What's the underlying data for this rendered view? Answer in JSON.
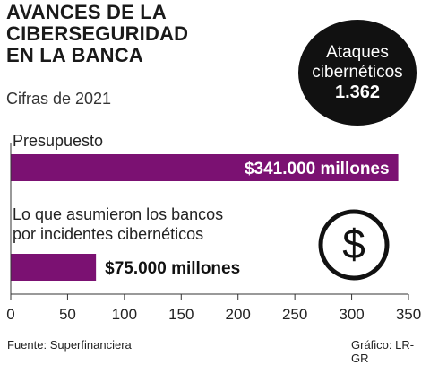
{
  "title": {
    "line1": "AVANCES DE LA",
    "line2": "CIBERSEGURIDAD",
    "line3": "EN LA BANCA"
  },
  "subtitle": "Cifras de 2021",
  "badge": {
    "line1": "Ataques",
    "line2": "cibernéticos",
    "value": "1.362"
  },
  "colors": {
    "bar": "#7b1172",
    "badge_bg": "#111111",
    "text": "#1a1a1a"
  },
  "icon": "dollar-circle-icon",
  "chart_data": {
    "type": "bar",
    "orientation": "horizontal",
    "categories": [
      "Presupuesto",
      "Lo que asumieron los bancos por incidentes cibernéticos"
    ],
    "category_lines": [
      [
        "Presupuesto"
      ],
      [
        "Lo que asumieron los bancos",
        "por incidentes cibernéticos"
      ]
    ],
    "values": [
      341,
      75
    ],
    "data_labels": [
      "$341.000 millones",
      "$75.000 millones"
    ],
    "xlim": [
      0,
      350
    ],
    "xticks": [
      "0",
      "50",
      "100",
      "150",
      "200",
      "250",
      "300",
      "350"
    ],
    "grid": false
  },
  "footer": {
    "source": "Fuente: Superfinanciera",
    "credit": "Gráfico: LR-GR"
  }
}
